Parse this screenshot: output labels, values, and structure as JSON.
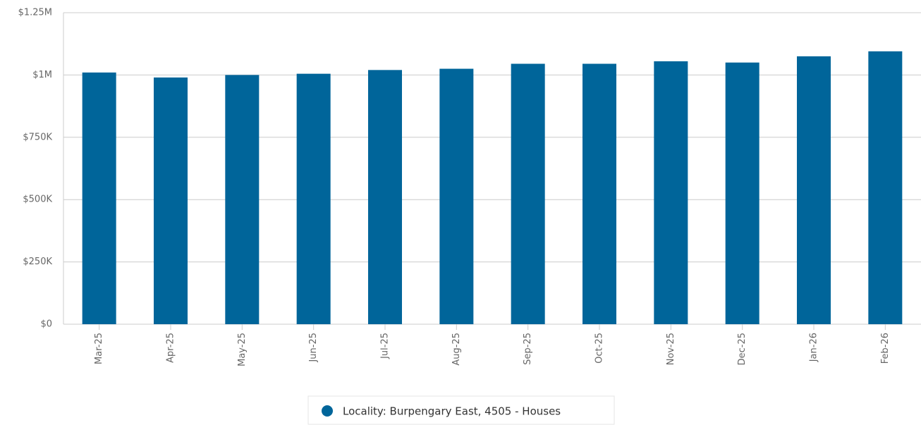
{
  "chart_data": {
    "type": "bar",
    "categories": [
      "Mar-25",
      "Apr-25",
      "May-25",
      "Jun-25",
      "Jul-25",
      "Aug-25",
      "Sep-25",
      "Oct-25",
      "Nov-25",
      "Dec-25",
      "Jan-26",
      "Feb-26"
    ],
    "series": [
      {
        "name": "Locality: Burpengary East, 4505 - Houses",
        "color": "#00659a",
        "values": [
          1010000,
          990000,
          1000000,
          1005000,
          1020000,
          1025000,
          1045000,
          1045000,
          1055000,
          1050000,
          1075000,
          1095000
        ]
      }
    ],
    "ylim": [
      0,
      1250000
    ],
    "yticks": [
      {
        "value": 0,
        "label": "$0"
      },
      {
        "value": 250000,
        "label": "$250K"
      },
      {
        "value": 500000,
        "label": "$500K"
      },
      {
        "value": 750000,
        "label": "$750K"
      },
      {
        "value": 1000000,
        "label": "$1M"
      },
      {
        "value": 1250000,
        "label": "$1.25M"
      }
    ],
    "grid": true,
    "legend": "bottom"
  }
}
